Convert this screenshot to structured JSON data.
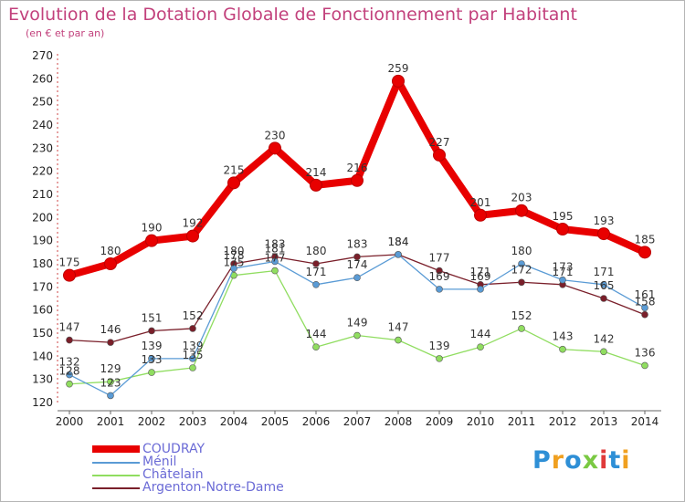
{
  "title": "Evolution de la Dotation Globale de Fonctionnement par Habitant",
  "subtitle": "(en € et par an)",
  "logo": {
    "text": "Proxiti",
    "colors": [
      "#2e8fd6",
      "#f0a020",
      "#2e8fd6",
      "#7ac943",
      "#e03a3a",
      "#2e8fd6",
      "#f0a020"
    ]
  },
  "chart_data": {
    "type": "line",
    "x": [
      2000,
      2001,
      2002,
      2003,
      2004,
      2005,
      2006,
      2007,
      2008,
      2009,
      2010,
      2011,
      2012,
      2013,
      2014
    ],
    "ylim": [
      120,
      270
    ],
    "yticks": [
      120,
      130,
      140,
      150,
      160,
      170,
      180,
      190,
      200,
      210,
      220,
      230,
      240,
      250,
      260,
      270
    ],
    "grid": false,
    "legend_position": "bottom-left",
    "series": [
      {
        "name": "COUDRAY",
        "color": "#e80000",
        "values": [
          175,
          180,
          190,
          192,
          215,
          230,
          214,
          216,
          259,
          227,
          201,
          203,
          195,
          193,
          185
        ]
      },
      {
        "name": "Ménil",
        "color": "#5a9bd5",
        "values": [
          132,
          123,
          139,
          139,
          178,
          181,
          171,
          174,
          184,
          169,
          169,
          180,
          173,
          171,
          161
        ]
      },
      {
        "name": "Châtelain",
        "color": "#90dd60",
        "values": [
          128,
          129,
          133,
          135,
          175,
          177,
          144,
          149,
          147,
          139,
          144,
          152,
          143,
          142,
          136
        ]
      },
      {
        "name": "Argenton-Notre-Dame",
        "color": "#7a1f2a",
        "values": [
          147,
          146,
          151,
          152,
          180,
          183,
          180,
          183,
          184,
          177,
          171,
          172,
          171,
          165,
          158
        ]
      }
    ]
  }
}
